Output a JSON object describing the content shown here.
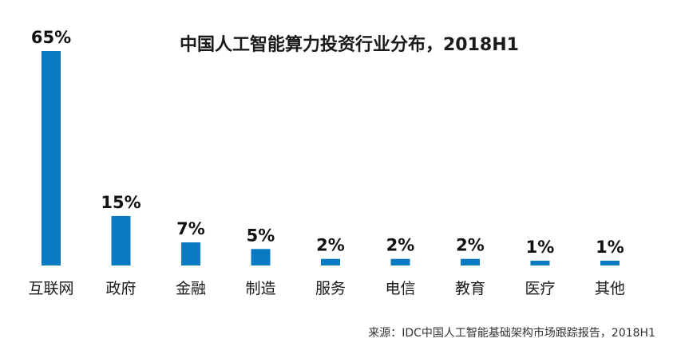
{
  "title": "中国人工智能算力投资行业分布，2018H1",
  "source": "来源：IDC中国人工智能基础架构市场跟踪报告，2018H1",
  "colors": {
    "bar": "#0a7ac2",
    "text": "#1a1a1a"
  },
  "chart_data": {
    "type": "bar",
    "title": "中国人工智能算力投资行业分布，2018H1",
    "xlabel": "",
    "ylabel": "",
    "ylim": [
      0,
      65
    ],
    "grid": false,
    "categories": [
      "互联网",
      "政府",
      "金融",
      "制造",
      "服务",
      "电信",
      "教育",
      "医疗",
      "其他"
    ],
    "values": [
      65,
      15,
      7,
      5,
      2,
      2,
      2,
      1,
      1
    ],
    "value_labels": [
      "65%",
      "15%",
      "7%",
      "5%",
      "2%",
      "2%",
      "2%",
      "1%",
      "1%"
    ],
    "unit": "%"
  }
}
